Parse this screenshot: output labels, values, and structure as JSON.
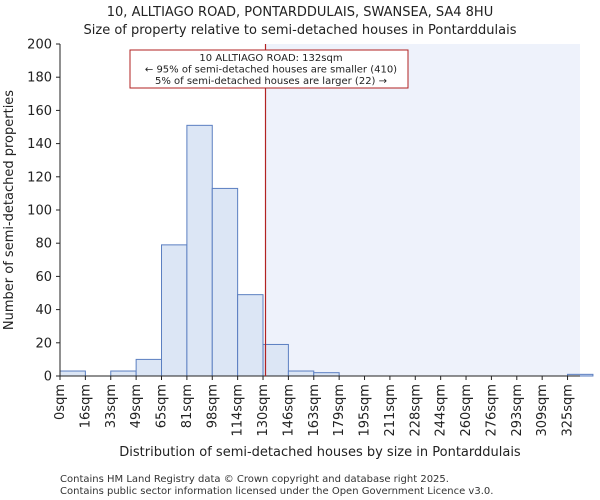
{
  "chart_data": {
    "type": "bar",
    "title_lines": [
      "10, ALLTIAGO ROAD, PONTARDDULAIS, SWANSEA, SA4 8HU",
      "Size of property relative to semi-detached houses in Pontarddulais"
    ],
    "xlabel": "Distribution of semi-detached houses by size in Pontarddulais",
    "ylabel": "Number of semi-detached properties",
    "ylim": [
      0,
      200
    ],
    "y_ticks": [
      0,
      20,
      40,
      60,
      80,
      100,
      120,
      140,
      160,
      180,
      200
    ],
    "bin_start": 0,
    "bin_width": 16.3,
    "x_max": 334,
    "x_tick_labels": [
      "0sqm",
      "16sqm",
      "33sqm",
      "49sqm",
      "65sqm",
      "81sqm",
      "98sqm",
      "114sqm",
      "130sqm",
      "146sqm",
      "163sqm",
      "179sqm",
      "195sqm",
      "211sqm",
      "228sqm",
      "244sqm",
      "260sqm",
      "276sqm",
      "293sqm",
      "309sqm",
      "325sqm"
    ],
    "values": [
      3,
      0,
      3,
      10,
      79,
      151,
      113,
      49,
      19,
      3,
      2,
      0,
      0,
      0,
      0,
      0,
      0,
      0,
      0,
      0,
      1
    ],
    "marker_value": 132,
    "annotation_lines": [
      "10 ALLTIAGO ROAD: 132sqm",
      "← 95% of semi-detached houses are smaller (410)",
      "5% of semi-detached houses are larger (22) →"
    ],
    "colors": {
      "bar_fill": "#dce6f5",
      "bar_stroke": "#5b7fc1",
      "marker": "#b22222",
      "highlight_region": "#eef2fb"
    }
  },
  "footer": {
    "line1": "Contains HM Land Registry data © Crown copyright and database right 2025.",
    "line2": "Contains public sector information licensed under the Open Government Licence v3.0."
  }
}
